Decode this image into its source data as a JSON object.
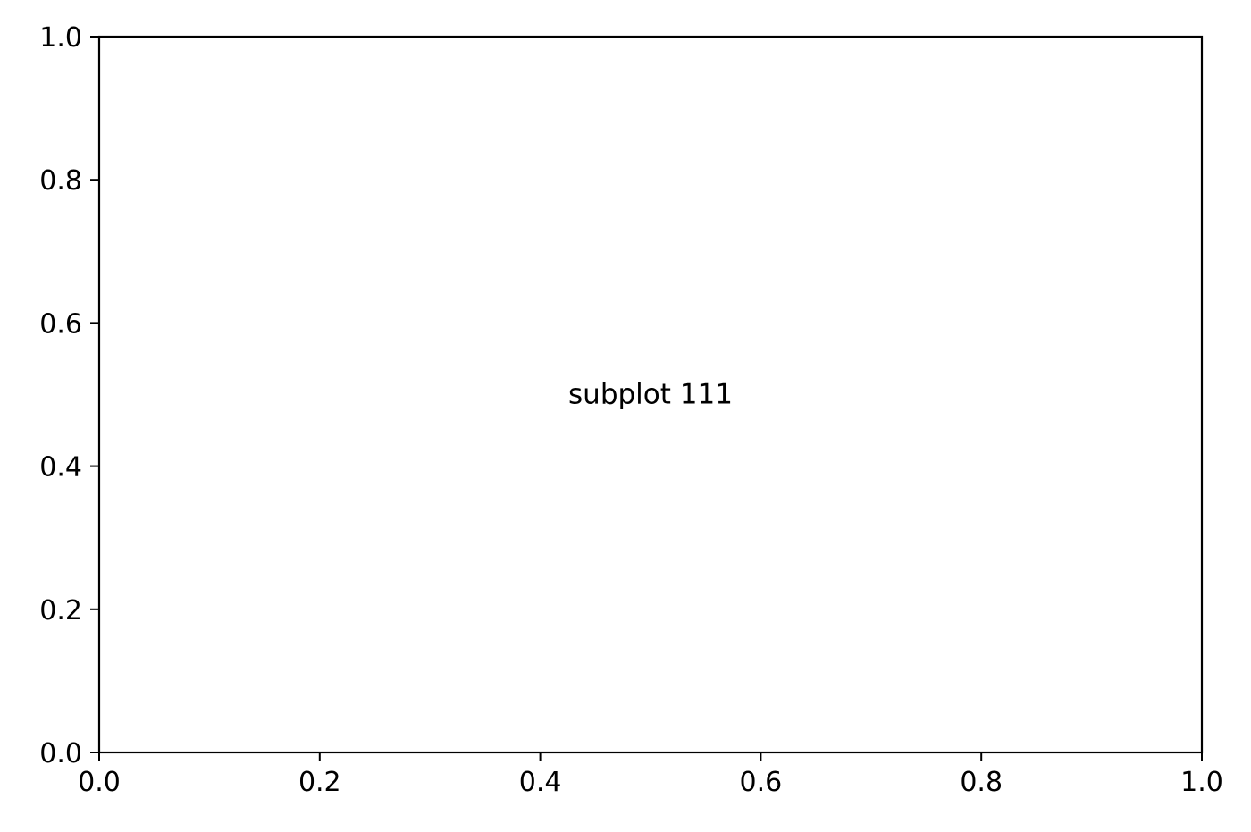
{
  "chart_data": {
    "type": "scatter",
    "title": "",
    "xlabel": "",
    "ylabel": "",
    "xlim": [
      0.0,
      1.0
    ],
    "ylim": [
      0.0,
      1.0
    ],
    "xticks": [
      "0.0",
      "0.2",
      "0.4",
      "0.6",
      "0.8",
      "1.0"
    ],
    "yticks": [
      "0.0",
      "0.2",
      "0.4",
      "0.6",
      "0.8",
      "1.0"
    ],
    "grid": false,
    "series": [],
    "annotations": [
      {
        "text": "subplot 111",
        "x": 0.5,
        "y": 0.5
      }
    ]
  },
  "colors": {
    "axes": "#000000",
    "background": "#ffffff"
  }
}
